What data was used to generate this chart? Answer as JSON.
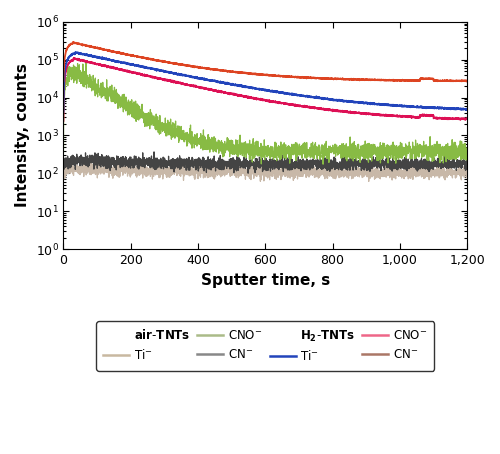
{
  "title": "",
  "xlabel": "Sputter time, s",
  "ylabel": "Intensity, counts",
  "xlim": [
    0,
    1200
  ],
  "ylim_log": [
    1,
    1000000
  ],
  "xticks": [
    0,
    200,
    400,
    600,
    800,
    1000,
    1200
  ],
  "xtick_labels": [
    "0",
    "200",
    "400",
    "600",
    "800",
    "1,000",
    "1,200"
  ],
  "colors": {
    "air_Ti": "#c8b8a8",
    "air_CNO": "#88bb44",
    "air_CN": "#444444",
    "h2_Ti": "#2244bb",
    "h2_CNO": "#e8206080",
    "h2_CN": "#cc2244"
  },
  "line_colors": {
    "air_Ti": "#c8b8a8",
    "air_CNO": "#88bb44",
    "air_CN": "#444444",
    "h2_Ti": "#2244bb",
    "h2_CNO": "#dd1055",
    "h2_CN": "#dd4422"
  },
  "legend_colors": {
    "air_Ti": "#c8b8a0",
    "air_CNO": "#aabb88",
    "air_CN": "#888888",
    "h2_Ti": "#2244bb",
    "h2_CNO": "#ee6688",
    "h2_CN": "#aa7766"
  },
  "figsize": [
    5.0,
    4.54
  ],
  "dpi": 100
}
